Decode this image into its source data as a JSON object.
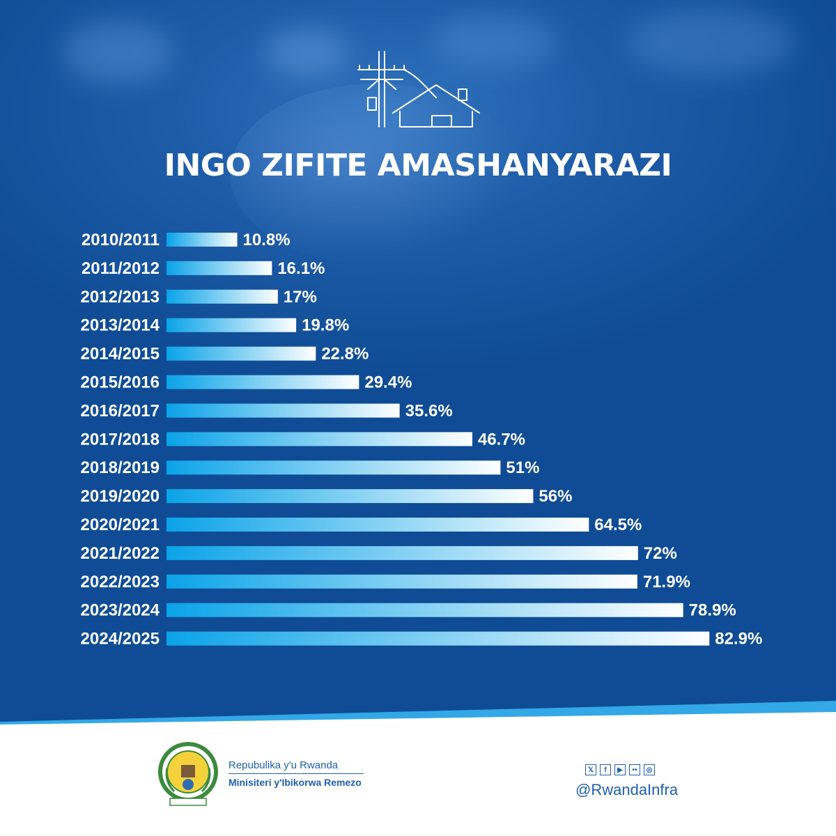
{
  "title": "INGO ZIFITE AMASHANYARAZI",
  "colors": {
    "background": "#0f4c95",
    "bar_start": "#0aa3e8",
    "bar_end": "#ffffff",
    "text": "#ffffff",
    "footer_text": "#1f5fae"
  },
  "top_icon": "power-pole-and-house-icon",
  "chart_data": {
    "type": "bar",
    "orientation": "horizontal",
    "title": "INGO ZIFITE AMASHANYARAZI",
    "xlabel": "",
    "ylabel": "",
    "xlim": [
      0,
      100
    ],
    "grid": false,
    "legend": "none",
    "categories": [
      "2010/2011",
      "2011/2012",
      "2012/2013",
      "2013/2014",
      "2014/2015",
      "2015/2016",
      "2016/2017",
      "2017/2018",
      "2018/2019",
      "2019/2020",
      "2020/2021",
      "2021/2022",
      "2022/2023",
      "2023/2024",
      "2024/2025"
    ],
    "values": [
      10.8,
      16.1,
      17,
      19.8,
      22.8,
      29.4,
      35.6,
      46.7,
      51,
      56,
      64.5,
      72,
      71.9,
      78.9,
      82.9
    ],
    "value_labels": [
      "10.8%",
      "16.1%",
      "17%",
      "19.8%",
      "22.8%",
      "29.4%",
      "35.6%",
      "46.7%",
      "51%",
      "56%",
      "64.5%",
      "72%",
      "71.9%",
      "78.9%",
      "82.9%"
    ]
  },
  "footer": {
    "logo_icon": "rwanda-coat-of-arms-icon",
    "org_name": "Repubulika y'u Rwanda",
    "ministry_name": "Minisiteri y'Ibikorwa Remezo",
    "social_icons": [
      "x-icon",
      "facebook-icon",
      "youtube-icon",
      "flickr-icon",
      "instagram-icon"
    ],
    "handle": "@RwandaInfra"
  }
}
